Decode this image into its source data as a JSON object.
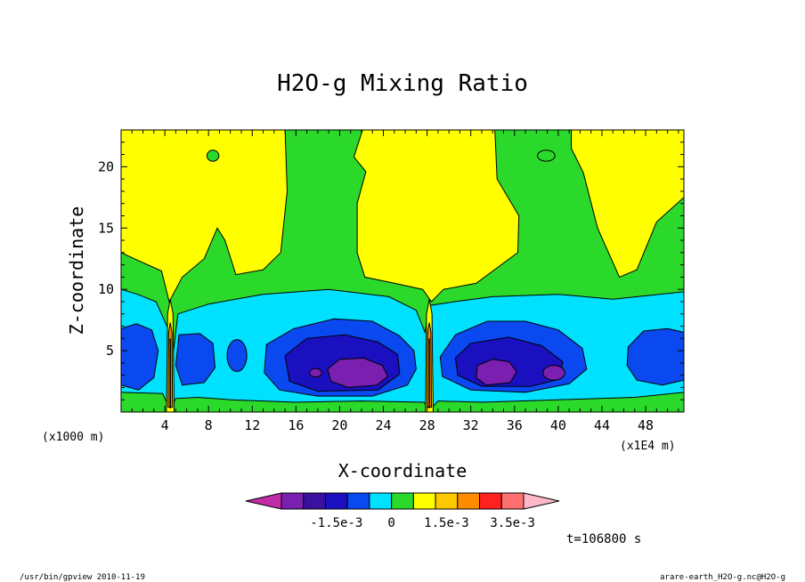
{
  "chart_data": {
    "type": "heatmap",
    "title": "H2O-g Mixing Ratio",
    "xlabel": "X-coordinate",
    "ylabel": "Z-coordinate",
    "x_unit_left": "(x1000 m)",
    "x_unit_right": "(x1E4 m)",
    "xlim": [
      0,
      51.5
    ],
    "ylim": [
      0,
      23
    ],
    "x_ticks": [
      4,
      8,
      12,
      16,
      20,
      24,
      28,
      32,
      36,
      40,
      44,
      48
    ],
    "y_ticks": [
      5,
      10,
      15,
      20
    ],
    "timestamp": "t=106800 s",
    "colorbar": {
      "colors": [
        "#c02ca8",
        "#7a1fb0",
        "#3a10a0",
        "#1a10c0",
        "#0a48f0",
        "#00e0ff",
        "#2bd92b",
        "#ffff00",
        "#ffc800",
        "#ff8c00",
        "#ff2020",
        "#ff7070",
        "#ffb8c8"
      ],
      "labels": [
        {
          "text": "-1.5e-3",
          "level": 2.5
        },
        {
          "text": "0",
          "level": 5
        },
        {
          "text": "1.5e-3",
          "level": 7.5
        },
        {
          "text": "3.5e-3",
          "level": 10.5
        }
      ]
    },
    "regions": {
      "background_level_color": "#2bd92b",
      "yellow_color": "#ffff00",
      "cyan_color": "#00e0ff",
      "blue_color": "#0a48f0",
      "navy_color": "#1a10c0",
      "purple_color": "#7a1fb0"
    }
  },
  "footer": {
    "left": "/usr/bin/gpview  2010-11-19",
    "right": "arare-earth_H2O-g.nc@H2O-g"
  }
}
